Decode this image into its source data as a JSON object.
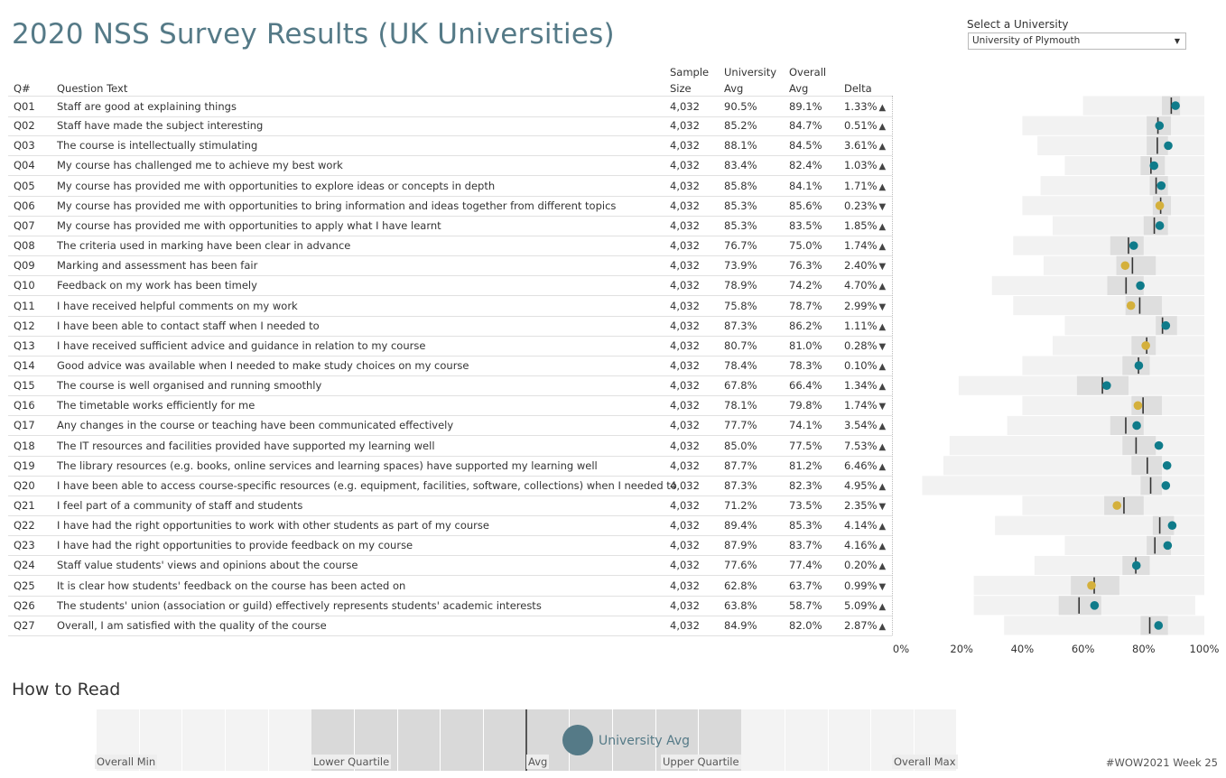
{
  "title": "2020 NSS Survey Results (UK Universities)",
  "selector": {
    "label": "Select a University",
    "value": "University of Plymouth"
  },
  "headers": {
    "q": "Q#",
    "text": "Question Text",
    "sample_line1": "Sample",
    "sample_line2": "Size",
    "uavg_line1": "University",
    "uavg_line2": "Avg",
    "oavg_line1": "Overall",
    "oavg_line2": "Avg",
    "delta": "Delta"
  },
  "colors": {
    "above": "#0f7b8a",
    "below": "#d4b03c",
    "band_outer": "#f2f2f2",
    "band_inner": "#dedede",
    "avg_line": "#333333"
  },
  "rows": [
    {
      "q": "Q01",
      "text": "Staff are good at explaining things",
      "n": "4,032",
      "uavg": "90.5%",
      "oavg": "89.1%",
      "delta": "1.33%",
      "dir": "up",
      "min": 60,
      "lq": 86,
      "uq": 92,
      "max": 100
    },
    {
      "q": "Q02",
      "text": "Staff have made the subject interesting",
      "n": "4,032",
      "uavg": "85.2%",
      "oavg": "84.7%",
      "delta": "0.51%",
      "dir": "up",
      "min": 40,
      "lq": 81,
      "uq": 89,
      "max": 100
    },
    {
      "q": "Q03",
      "text": "The course is intellectually stimulating",
      "n": "4,032",
      "uavg": "88.1%",
      "oavg": "84.5%",
      "delta": "3.61%",
      "dir": "up",
      "min": 45,
      "lq": 81,
      "uq": 88,
      "max": 100
    },
    {
      "q": "Q04",
      "text": "My course has challenged me to achieve my best work",
      "n": "4,032",
      "uavg": "83.4%",
      "oavg": "82.4%",
      "delta": "1.03%",
      "dir": "up",
      "min": 54,
      "lq": 79,
      "uq": 87,
      "max": 100
    },
    {
      "q": "Q05",
      "text": "My course has provided me with opportunities to explore ideas or concepts in depth",
      "n": "4,032",
      "uavg": "85.8%",
      "oavg": "84.1%",
      "delta": "1.71%",
      "dir": "up",
      "min": 46,
      "lq": 82,
      "uq": 88,
      "max": 100
    },
    {
      "q": "Q06",
      "text": "My course has provided me with opportunities to bring information and ideas together from different topics",
      "n": "4,032",
      "uavg": "85.3%",
      "oavg": "85.6%",
      "delta": "0.23%",
      "dir": "down",
      "min": 40,
      "lq": 83,
      "uq": 89,
      "max": 100
    },
    {
      "q": "Q07",
      "text": "My course has provided me with opportunities to apply what I have learnt",
      "n": "4,032",
      "uavg": "85.3%",
      "oavg": "83.5%",
      "delta": "1.85%",
      "dir": "up",
      "min": 50,
      "lq": 80,
      "uq": 88,
      "max": 100
    },
    {
      "q": "Q08",
      "text": "The criteria used in marking have been clear in advance",
      "n": "4,032",
      "uavg": "76.7%",
      "oavg": "75.0%",
      "delta": "1.74%",
      "dir": "up",
      "min": 37,
      "lq": 69,
      "uq": 80,
      "max": 100
    },
    {
      "q": "Q09",
      "text": "Marking and assessment has been fair",
      "n": "4,032",
      "uavg": "73.9%",
      "oavg": "76.3%",
      "delta": "2.40%",
      "dir": "down",
      "min": 47,
      "lq": 71,
      "uq": 84,
      "max": 100
    },
    {
      "q": "Q10",
      "text": "Feedback on my work has been timely",
      "n": "4,032",
      "uavg": "78.9%",
      "oavg": "74.2%",
      "delta": "4.70%",
      "dir": "up",
      "min": 30,
      "lq": 68,
      "uq": 80,
      "max": 100
    },
    {
      "q": "Q11",
      "text": "I have received helpful comments on my work",
      "n": "4,032",
      "uavg": "75.8%",
      "oavg": "78.7%",
      "delta": "2.99%",
      "dir": "down",
      "min": 37,
      "lq": 74,
      "uq": 86,
      "max": 100
    },
    {
      "q": "Q12",
      "text": "I have been able to contact staff when I needed to",
      "n": "4,032",
      "uavg": "87.3%",
      "oavg": "86.2%",
      "delta": "1.11%",
      "dir": "up",
      "min": 54,
      "lq": 84,
      "uq": 91,
      "max": 100
    },
    {
      "q": "Q13",
      "text": "I have received sufficient advice and guidance in relation to my course",
      "n": "4,032",
      "uavg": "80.7%",
      "oavg": "81.0%",
      "delta": "0.28%",
      "dir": "down",
      "min": 50,
      "lq": 76,
      "uq": 84,
      "max": 100
    },
    {
      "q": "Q14",
      "text": "Good advice was available when I needed to make study choices on my course",
      "n": "4,032",
      "uavg": "78.4%",
      "oavg": "78.3%",
      "delta": "0.10%",
      "dir": "up",
      "min": 40,
      "lq": 73,
      "uq": 82,
      "max": 100
    },
    {
      "q": "Q15",
      "text": "The course is well organised and running smoothly",
      "n": "4,032",
      "uavg": "67.8%",
      "oavg": "66.4%",
      "delta": "1.34%",
      "dir": "up",
      "min": 19,
      "lq": 58,
      "uq": 75,
      "max": 100
    },
    {
      "q": "Q16",
      "text": "The timetable works efficiently for me",
      "n": "4,032",
      "uavg": "78.1%",
      "oavg": "79.8%",
      "delta": "1.74%",
      "dir": "down",
      "min": 40,
      "lq": 76,
      "uq": 86,
      "max": 100
    },
    {
      "q": "Q17",
      "text": "Any changes in the course or teaching have been communicated effectively",
      "n": "4,032",
      "uavg": "77.7%",
      "oavg": "74.1%",
      "delta": "3.54%",
      "dir": "up",
      "min": 35,
      "lq": 69,
      "uq": 80,
      "max": 100
    },
    {
      "q": "Q18",
      "text": "The IT resources and facilities provided have supported my learning well",
      "n": "4,032",
      "uavg": "85.0%",
      "oavg": "77.5%",
      "delta": "7.53%",
      "dir": "up",
      "min": 16,
      "lq": 73,
      "uq": 84,
      "max": 100
    },
    {
      "q": "Q19",
      "text": "The library resources (e.g. books, online services and learning spaces) have supported my learning well",
      "n": "4,032",
      "uavg": "87.7%",
      "oavg": "81.2%",
      "delta": "6.46%",
      "dir": "up",
      "min": 14,
      "lq": 76,
      "uq": 86,
      "max": 100
    },
    {
      "q": "Q20",
      "text": "I have been able to access course-specific resources (e.g. equipment, facilities, software, collections) when I needed to",
      "n": "4,032",
      "uavg": "87.3%",
      "oavg": "82.3%",
      "delta": "4.95%",
      "dir": "up",
      "min": 7,
      "lq": 79,
      "uq": 86,
      "max": 100
    },
    {
      "q": "Q21",
      "text": "I feel part of a community of staff and students",
      "n": "4,032",
      "uavg": "71.2%",
      "oavg": "73.5%",
      "delta": "2.35%",
      "dir": "down",
      "min": 40,
      "lq": 67,
      "uq": 80,
      "max": 100
    },
    {
      "q": "Q22",
      "text": "I have had the right opportunities to work with other students as part of my course",
      "n": "4,032",
      "uavg": "89.4%",
      "oavg": "85.3%",
      "delta": "4.14%",
      "dir": "up",
      "min": 31,
      "lq": 83,
      "uq": 90,
      "max": 100
    },
    {
      "q": "Q23",
      "text": "I have had the right opportunities to provide feedback on my course",
      "n": "4,032",
      "uavg": "87.9%",
      "oavg": "83.7%",
      "delta": "4.16%",
      "dir": "up",
      "min": 54,
      "lq": 81,
      "uq": 89,
      "max": 100
    },
    {
      "q": "Q24",
      "text": "Staff value students' views and opinions about the course",
      "n": "4,032",
      "uavg": "77.6%",
      "oavg": "77.4%",
      "delta": "0.20%",
      "dir": "up",
      "min": 44,
      "lq": 73,
      "uq": 82,
      "max": 100
    },
    {
      "q": "Q25",
      "text": "It is clear how students' feedback on the course has been acted on",
      "n": "4,032",
      "uavg": "62.8%",
      "oavg": "63.7%",
      "delta": "0.99%",
      "dir": "down",
      "min": 24,
      "lq": 56,
      "uq": 72,
      "max": 100
    },
    {
      "q": "Q26",
      "text": "The students' union (association or guild) effectively represents students' academic interests",
      "n": "4,032",
      "uavg": "63.8%",
      "oavg": "58.7%",
      "delta": "5.09%",
      "dir": "up",
      "min": 24,
      "lq": 52,
      "uq": 66,
      "max": 97
    },
    {
      "q": "Q27",
      "text": "Overall, I am satisfied with the quality of the course",
      "n": "4,032",
      "uavg": "84.9%",
      "oavg": "82.0%",
      "delta": "2.87%",
      "dir": "up",
      "min": 34,
      "lq": 79,
      "uq": 88,
      "max": 100
    }
  ],
  "axis_ticks": [
    "0%",
    "20%",
    "40%",
    "60%",
    "80%",
    "100%"
  ],
  "howto": {
    "title": "How to Read",
    "overall_min": "Overall Min",
    "lower_quartile": "Lower Quartile",
    "avg": "Avg",
    "upper_quartile": "Upper Quartile",
    "overall_max": "Overall Max",
    "university_avg": "University Avg"
  },
  "footer": "#WOW2021 Week 25"
}
